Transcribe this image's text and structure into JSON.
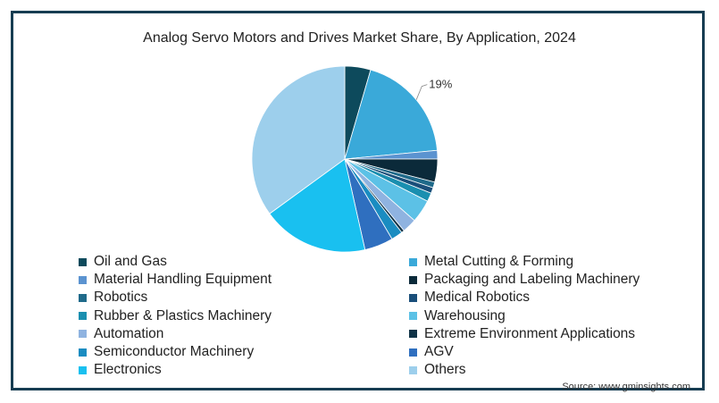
{
  "chart_data": {
    "type": "pie",
    "title": "Analog Servo Motors and Drives Market Share, By Application, 2024",
    "slices": [
      {
        "label": "Oil and Gas",
        "value": 4.5,
        "color": "#0d4a5c"
      },
      {
        "label": "Metal Cutting & Forming",
        "value": 19,
        "color": "#3aa9d9",
        "data_label": "19%"
      },
      {
        "label": "Material Handling Equipment",
        "value": 1.5,
        "color": "#5b93d0"
      },
      {
        "label": "Packaging and Labeling Machinery",
        "value": 4,
        "color": "#0b2a3a"
      },
      {
        "label": "Robotics",
        "value": 1,
        "color": "#1f6a8a"
      },
      {
        "label": "Medical Robotics",
        "value": 1,
        "color": "#1a4f7a"
      },
      {
        "label": "Rubber & Plastics Machinery",
        "value": 1.5,
        "color": "#1a8fb0"
      },
      {
        "label": "Warehousing",
        "value": 4,
        "color": "#5cc1e6"
      },
      {
        "label": "Automation",
        "value": 2.5,
        "color": "#8fb3e0"
      },
      {
        "label": "Extreme Environment Applications",
        "value": 0.5,
        "color": "#0f3347"
      },
      {
        "label": "Semiconductor Machinery",
        "value": 2,
        "color": "#1a8cc1"
      },
      {
        "label": "AGV",
        "value": 5,
        "color": "#2f6fbf"
      },
      {
        "label": "Electronics",
        "value": 18.5,
        "color": "#19c0f0"
      },
      {
        "label": "Others",
        "value": 35,
        "color": "#9dcfec"
      }
    ]
  },
  "source": "Source: www.gminsights.com"
}
